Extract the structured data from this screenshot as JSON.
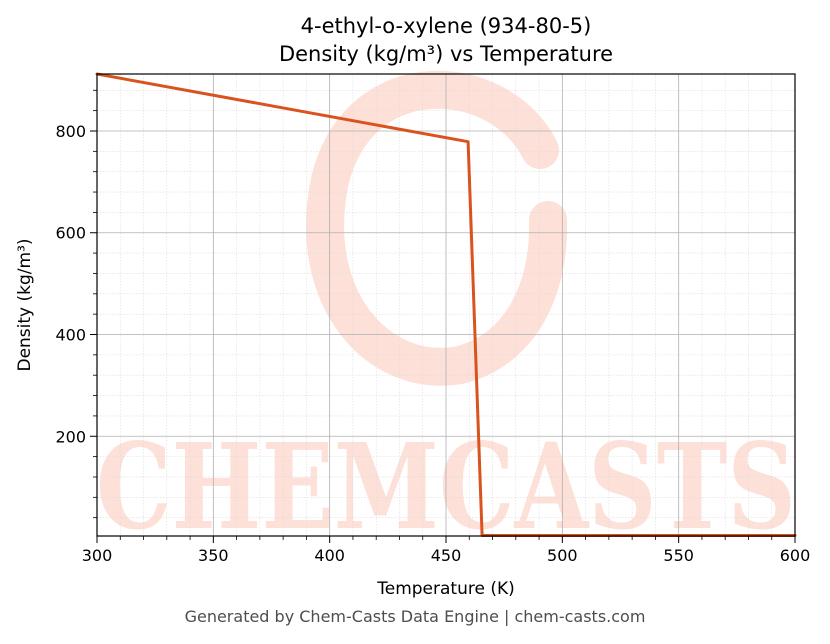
{
  "chart_data": {
    "type": "line",
    "title_line1": "4-ethyl-o-xylene (934-80-5)",
    "title_line2": "Density (kg/m³) vs Temperature",
    "xlabel": "Temperature (K)",
    "ylabel": "Density (kg/m³)",
    "xlim": [
      300,
      600
    ],
    "ylim": [
      4,
      912
    ],
    "x_ticks": [
      300,
      350,
      400,
      450,
      500,
      550,
      600
    ],
    "y_ticks": [
      200,
      400,
      600,
      800
    ],
    "grid": true,
    "line_color": "#d9531e",
    "series": [
      {
        "x": [
          300,
          459.5,
          465.5,
          600
        ],
        "y": [
          912,
          779,
          5,
          5
        ]
      }
    ]
  },
  "watermark": {
    "text": "CHEMCASTS",
    "color": "#fde0d8"
  },
  "footer": "Generated by Chem-Casts Data Engine | chem-casts.com"
}
